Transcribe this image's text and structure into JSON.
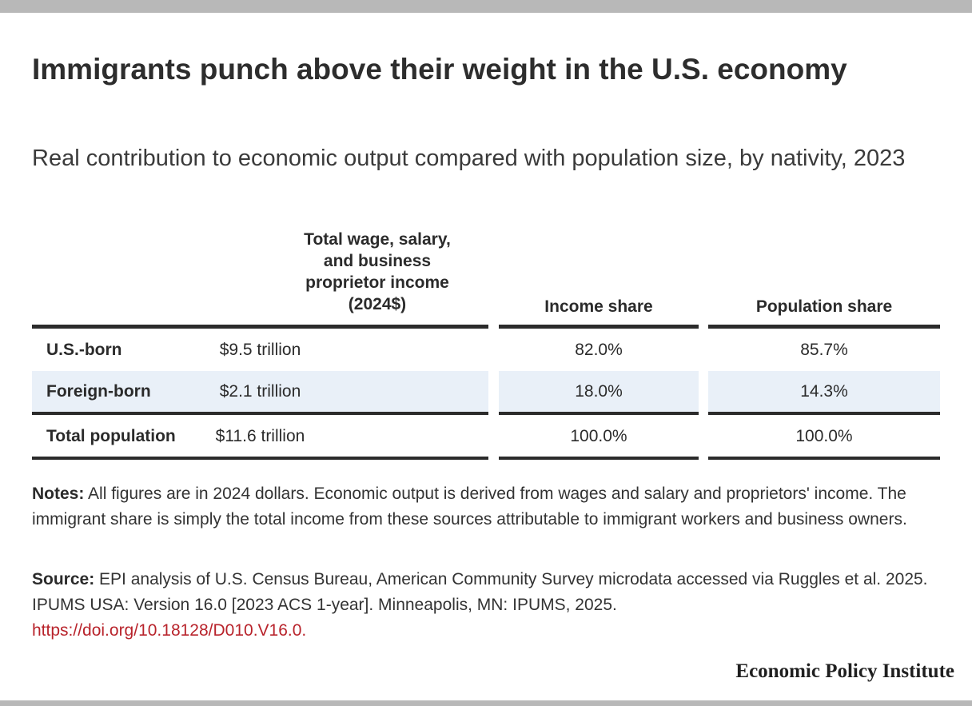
{
  "title": "Immigrants punch above their weight in the U.S. economy",
  "subtitle": "Real contribution to economic output compared with population size, by nativity, 2023",
  "chart_data": {
    "type": "table",
    "columns": [
      "",
      "Total wage, salary, and business proprietor income (2024$)",
      "Income share",
      "Population share"
    ],
    "rows": [
      {
        "label": "U.S.-born",
        "income": "$9.5 trillion",
        "income_share": "82.0%",
        "population_share": "85.7%"
      },
      {
        "label": "Foreign-born",
        "income": "$2.1 trillion",
        "income_share": "18.0%",
        "population_share": "14.3%"
      },
      {
        "label": "Total population",
        "income": "$11.6 trillion",
        "income_share": "100.0%",
        "population_share": "100.0%"
      }
    ],
    "shaded_row_color": "#e9f0f8"
  },
  "notes": {
    "label": "Notes:",
    "text": "All figures are in 2024 dollars. Economic output is derived from wages and salary and proprietors' income. The immigrant share is simply the total income from these sources attributable to immigrant workers and business owners."
  },
  "source": {
    "label": "Source:",
    "text": "EPI analysis of U.S. Census Bureau, American Community Survey microdata accessed via Ruggles et al. 2025. IPUMS USA: Version 16.0 [2023 ACS 1-year]. Minneapolis, MN: IPUMS, 2025.",
    "link": "https://doi.org/10.18128/D010.V16.0."
  },
  "brand": "Economic Policy Institute",
  "colors": {
    "accent_link": "#b8232b",
    "rule": "#2b2b2b",
    "frame": "#b8b8b8"
  }
}
